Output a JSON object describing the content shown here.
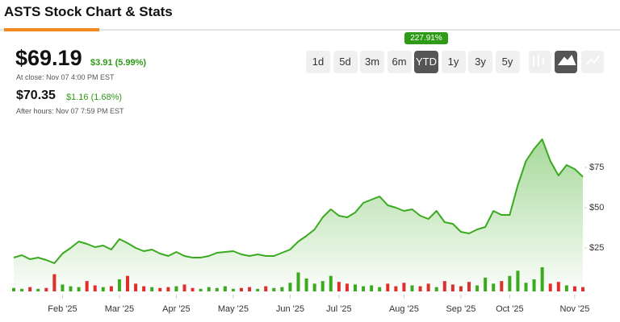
{
  "header": {
    "title": "ASTS Stock Chart & Stats"
  },
  "quote": {
    "price": "$69.19",
    "change": "$3.91 (5.99%)",
    "close_time": "At close: Nov 07 4:00 PM EST",
    "after_price": "$70.35",
    "after_change": "$1.16 (1.68%)",
    "after_time": "After hours: Nov 07 7:59 PM EST"
  },
  "ranges": {
    "buttons": [
      "1d",
      "5d",
      "3m",
      "6m",
      "YTD",
      "1y",
      "3y",
      "5y"
    ],
    "active": 4,
    "badge": "227.91%"
  },
  "chart_data": {
    "type": "area",
    "color": "#3aaa1e",
    "categories": [
      null,
      null,
      null,
      null,
      null,
      null,
      "Feb '25",
      null,
      null,
      null,
      null,
      null,
      null,
      "Mar '25",
      null,
      null,
      null,
      null,
      null,
      null,
      "Apr '25",
      null,
      null,
      null,
      null,
      null,
      null,
      "May '25",
      null,
      null,
      null,
      null,
      null,
      null,
      "Jun '25",
      null,
      null,
      null,
      null,
      null,
      "Jul '25",
      null,
      null,
      null,
      null,
      null,
      null,
      null,
      "Aug '25",
      null,
      null,
      null,
      null,
      null,
      null,
      "Sep '25",
      null,
      null,
      null,
      null,
      null,
      "Oct '25",
      null,
      null,
      null,
      null,
      null,
      null,
      null,
      "Nov '25",
      null
    ],
    "values": [
      19,
      20.5,
      18,
      19,
      17.5,
      15.5,
      21.5,
      25,
      29,
      27.5,
      25.5,
      26.5,
      24,
      30.5,
      28,
      25,
      23,
      24,
      21.5,
      20,
      22.5,
      20,
      19,
      19,
      20,
      22,
      22.5,
      23,
      21,
      20,
      21,
      20,
      20,
      22,
      24,
      29,
      32.5,
      36.5,
      44,
      49,
      45,
      44,
      47,
      53,
      55,
      57,
      51.5,
      50,
      48,
      49,
      45,
      43,
      48,
      41,
      40,
      35,
      34,
      36.5,
      38,
      48,
      45.5,
      45.5,
      64,
      79,
      86.5,
      92.5,
      79,
      70,
      76.5,
      74,
      69.19
    ],
    "ylim": [
      0,
      104
    ],
    "yticks": [
      {
        "value": 25,
        "label": "$25"
      },
      {
        "value": 50,
        "label": "$50"
      },
      {
        "value": 75,
        "label": "$75"
      }
    ],
    "volume": {
      "values": [
        4,
        3,
        5,
        3,
        4,
        20,
        8,
        6,
        5,
        12,
        7,
        5,
        6,
        14,
        18,
        9,
        6,
        5,
        4,
        5,
        6,
        8,
        4,
        3,
        5,
        4,
        6,
        3,
        4,
        5,
        3,
        6,
        4,
        5,
        10,
        22,
        15,
        9,
        12,
        18,
        11,
        9,
        8,
        6,
        7,
        5,
        9,
        6,
        10,
        7,
        6,
        9,
        5,
        12,
        8,
        6,
        11,
        7,
        16,
        9,
        12,
        18,
        24,
        10,
        14,
        28,
        9,
        11,
        7,
        6,
        5
      ],
      "up_color": "#3aaa1e",
      "down_color": "#e0302b"
    }
  }
}
